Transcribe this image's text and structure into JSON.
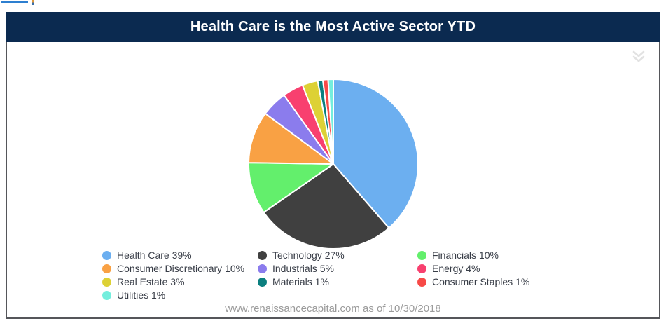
{
  "header": {
    "background_color": "#0b2a50",
    "title_color": "#ffffff"
  },
  "icons": {
    "collapse_chevron": "double-chevron-down",
    "collapse_chevron_color": "#e2e2e2"
  },
  "panel": {
    "border_color": "#55565a",
    "background_color": "#ffffff"
  },
  "legend": {
    "text_color": "#383d47",
    "position": "bottom",
    "columns": 3
  },
  "chart_data": {
    "type": "pie",
    "title": "Health Care is the Most Active Sector YTD",
    "source_note": "www.renaissancecapital.com as of 10/30/2018",
    "start_angle_deg": -90,
    "direction": "clockwise",
    "slices": [
      {
        "label": "Health Care",
        "value": 39,
        "legend_label": "Health Care 39%",
        "color": "#6caff0"
      },
      {
        "label": "Technology",
        "value": 27,
        "legend_label": "Technology 27%",
        "color": "#404040"
      },
      {
        "label": "Financials",
        "value": 10,
        "legend_label": "Financials 10%",
        "color": "#63ef6c"
      },
      {
        "label": "Consumer Discretionary",
        "value": 10,
        "legend_label": "Consumer Discretionary 10%",
        "color": "#f9a144"
      },
      {
        "label": "Industrials",
        "value": 5,
        "legend_label": "Industrials 5%",
        "color": "#8b7ced"
      },
      {
        "label": "Energy",
        "value": 4,
        "legend_label": "Energy 4%",
        "color": "#f8406f"
      },
      {
        "label": "Real Estate",
        "value": 3,
        "legend_label": "Real Estate 3%",
        "color": "#ddd135"
      },
      {
        "label": "Materials",
        "value": 1,
        "legend_label": "Materials 1%",
        "color": "#0b7f7f"
      },
      {
        "label": "Consumer Staples",
        "value": 1,
        "legend_label": "Consumer Staples 1%",
        "color": "#f74a47"
      },
      {
        "label": "Utilities",
        "value": 1,
        "legend_label": "Utilities 1%",
        "color": "#74eedd"
      }
    ]
  }
}
